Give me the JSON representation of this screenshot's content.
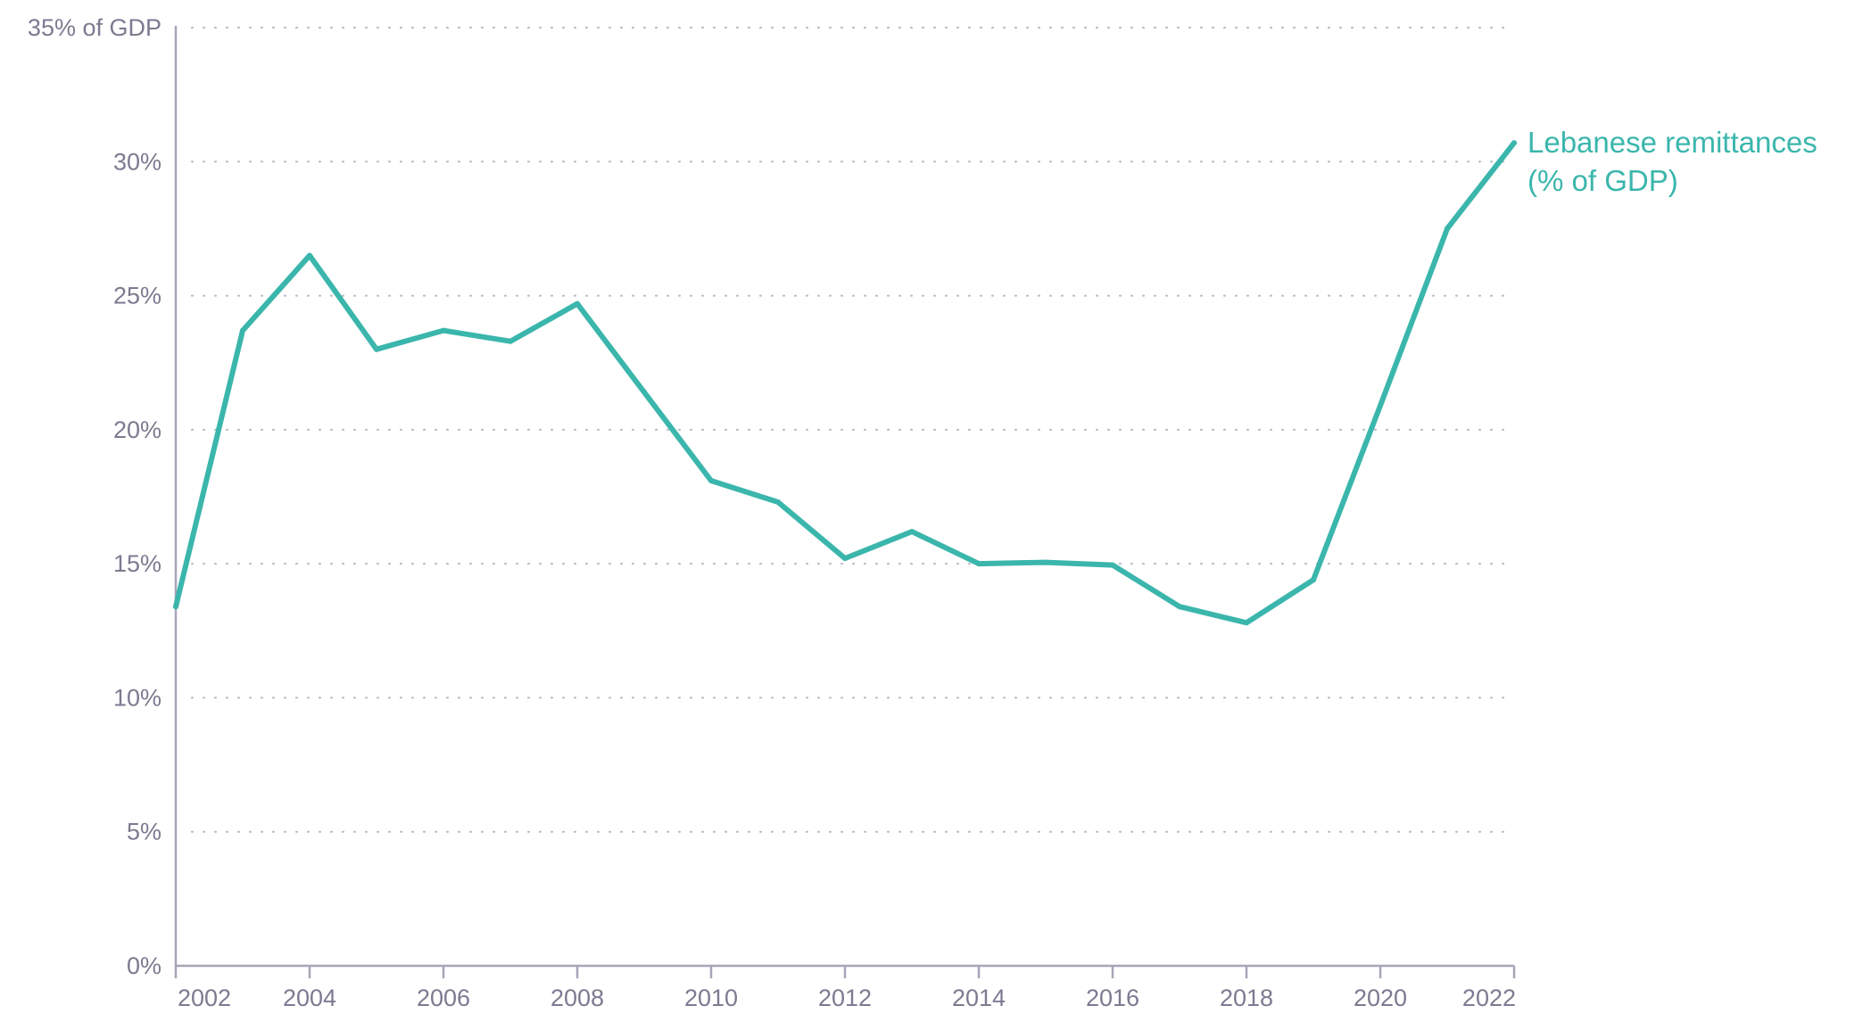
{
  "chart_data": {
    "type": "line",
    "title": "",
    "xlabel": "",
    "ylabel": "",
    "x": [
      2002,
      2003,
      2004,
      2005,
      2006,
      2007,
      2008,
      2009,
      2010,
      2011,
      2012,
      2013,
      2014,
      2015,
      2016,
      2017,
      2018,
      2019,
      2020,
      2021,
      2022
    ],
    "series": [
      {
        "name": "Lebanese remittances (% of GDP)",
        "label_lines": [
          "Lebanese remittances",
          "(% of GDP)"
        ],
        "color": "#3bb6ac",
        "values": [
          13.4,
          23.7,
          26.5,
          23.0,
          23.7,
          23.3,
          24.7,
          21.4,
          18.1,
          17.3,
          15.2,
          16.2,
          15.0,
          15.05,
          14.95,
          13.4,
          12.8,
          14.4,
          20.9,
          27.5,
          30.7
        ]
      }
    ],
    "xlim": [
      2002,
      2022
    ],
    "ylim": [
      0,
      35
    ],
    "x_ticks": [
      2002,
      2004,
      2006,
      2008,
      2010,
      2012,
      2014,
      2016,
      2018,
      2020,
      2022
    ],
    "x_tick_labels": [
      "2002",
      "2004",
      "2006",
      "2008",
      "2010",
      "2012",
      "2014",
      "2016",
      "2018",
      "2020",
      "2022"
    ],
    "y_ticks": [
      0,
      5,
      10,
      15,
      20,
      25,
      30,
      35
    ],
    "y_tick_labels": [
      "0%",
      "5%",
      "10%",
      "15%",
      "20%",
      "25%",
      "30%",
      "35% of GDP"
    ],
    "grid": "horizontal dotted",
    "legend": "direct label at line end",
    "colors": {
      "axis": "#a7a5b7",
      "grid": "#b3b3c2",
      "tick_text": "#7d7a90"
    }
  }
}
